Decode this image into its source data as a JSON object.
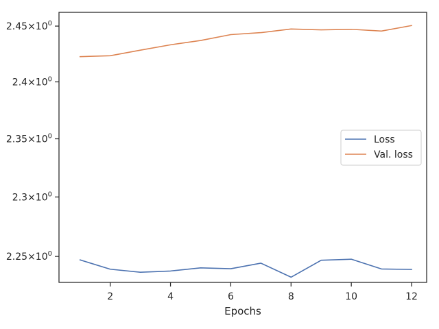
{
  "chart_data": {
    "type": "line",
    "title": "",
    "xlabel": "Epochs",
    "ylabel": "",
    "yscale": "log",
    "grid": false,
    "legend_position": "center-right",
    "xlim": [
      0.3,
      12.5
    ],
    "ylim": [
      2.2285,
      2.4625
    ],
    "x": [
      1,
      2,
      3,
      4,
      5,
      6,
      7,
      8,
      9,
      10,
      11,
      12
    ],
    "x_ticks": [
      {
        "value": 2,
        "label": "2"
      },
      {
        "value": 4,
        "label": "4"
      },
      {
        "value": 6,
        "label": "6"
      },
      {
        "value": 8,
        "label": "8"
      },
      {
        "value": 10,
        "label": "10"
      },
      {
        "value": 12,
        "label": "12"
      }
    ],
    "y_ticks": [
      {
        "value": 2.25,
        "mant": "2.25",
        "exp": "0"
      },
      {
        "value": 2.3,
        "mant": "2.3",
        "exp": "0"
      },
      {
        "value": 2.35,
        "mant": "2.35",
        "exp": "0"
      },
      {
        "value": 2.4,
        "mant": "2.4",
        "exp": "0"
      },
      {
        "value": 2.45,
        "mant": "2.45",
        "exp": "0"
      }
    ],
    "series": [
      {
        "name": "Loss",
        "color": "#4c72b0",
        "values": [
          2.2471,
          2.2394,
          2.2369,
          2.2379,
          2.2405,
          2.2398,
          2.2444,
          2.2328,
          2.2468,
          2.2477,
          2.2396,
          2.2392
        ]
      },
      {
        "name": "Val. loss",
        "color": "#dd8452",
        "values": [
          2.4225,
          2.4233,
          2.4283,
          2.4331,
          2.437,
          2.4423,
          2.4441,
          2.4474,
          2.4466,
          2.4471,
          2.4455,
          2.4505
        ]
      }
    ]
  }
}
